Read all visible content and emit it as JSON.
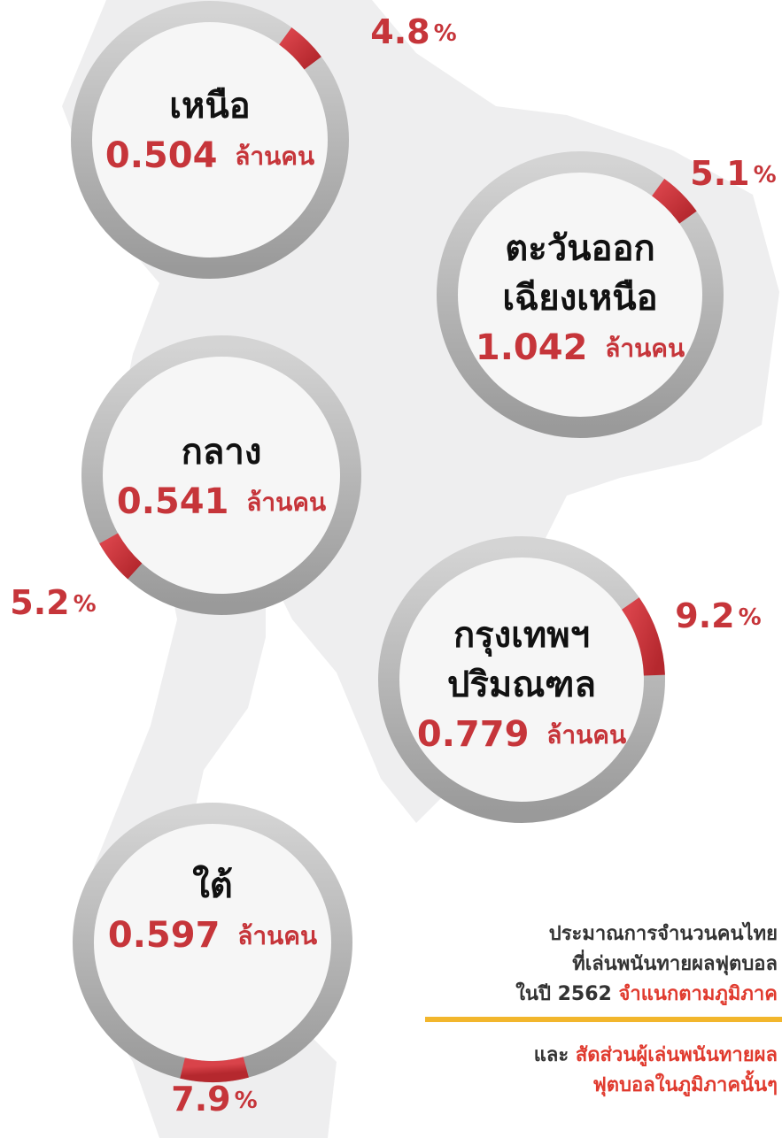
{
  "unit": "ล้านคน",
  "percent_sign": "%",
  "regions": [
    {
      "name_lines": [
        "เหนือ"
      ],
      "people": 0.504,
      "share": 4.8
    },
    {
      "name_lines": [
        "ตะวันออก",
        "เฉียงเหนือ"
      ],
      "people": 1.042,
      "share": 5.1
    },
    {
      "name_lines": [
        "กลาง"
      ],
      "people": 0.541,
      "share": 5.2
    },
    {
      "name_lines": [
        "กรุงเทพฯ",
        "ปริมณฑล"
      ],
      "people": 0.779,
      "share": 9.2
    },
    {
      "name_lines": [
        "ใต้"
      ],
      "people": 0.597,
      "share": 7.9
    }
  ],
  "caption": {
    "lines": [
      [
        {
          "text": "ประมาณการจำนวนคนไทย",
          "color": "#333333"
        }
      ],
      [
        {
          "text": "ที่เล่นพนันทายผลฟุตบอล",
          "color": "#333333"
        }
      ],
      [
        {
          "text": "ในปี 2562 ",
          "color": "#333333"
        },
        {
          "text": "จำแนกตามภูมิภาค",
          "color": "#e03a2e"
        }
      ]
    ],
    "note_lines": [
      [
        {
          "text": "และ ",
          "color": "#333333"
        },
        {
          "text": "สัดส่วนผู้เล่นพนันทายผล",
          "color": "#e03a2e"
        }
      ],
      [
        {
          "text": "ฟุตบอลในภูมิภาคนั้นๆ",
          "color": "#e03a2e"
        }
      ]
    ]
  }
}
